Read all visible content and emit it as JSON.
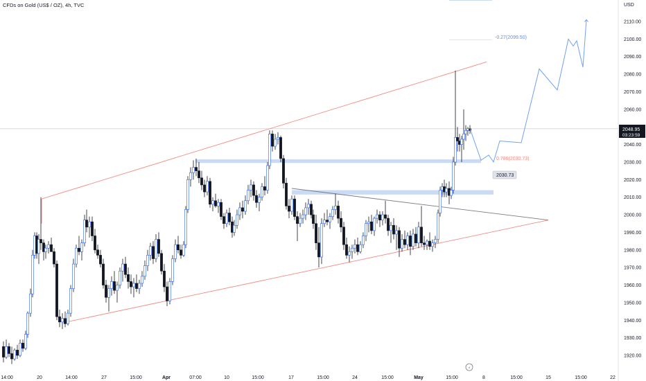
{
  "header": {
    "title": "CFDs on Gold (US$ / OZ), 4h, TVC"
  },
  "colors": {
    "up_body": "#ffffff",
    "down_body": "#131722",
    "candle_outline": "#2962ff",
    "wick": "#131722",
    "channel": "#f28b82",
    "triangle": "#787b86",
    "zone": "#b8ccf0",
    "projection": "#6fa1f2"
  },
  "price_badge": {
    "price": "2048.95",
    "countdown": "03:23:59"
  },
  "zone_label": "2030.73",
  "fib_labels": {
    "upper": "-0.27(2099.50)",
    "lower": "0.786(2030.73)"
  },
  "chart_data": {
    "type": "candlestick",
    "title": "CFDs on Gold (US$ / OZ), 4h, TVC",
    "y_axis": {
      "unit": "USD",
      "range": [
        1912,
        2130
      ],
      "ticks": [
        "1920.00",
        "1930.00",
        "1940.00",
        "1950.00",
        "1960.00",
        "1970.00",
        "1980.00",
        "1990.00",
        "2000.00",
        "2010.00",
        "2020.00",
        "2030.00",
        "2040.00",
        "2050.00",
        "2060.00",
        "2070.00",
        "2080.00",
        "2090.00",
        "2100.00",
        "2110.00"
      ]
    },
    "x_axis": {
      "range": [
        0,
        932
      ],
      "ticks": [
        {
          "label": "14:00",
          "x": 10
        },
        {
          "label": "20",
          "x": 57
        },
        {
          "label": "14:00",
          "x": 103
        },
        {
          "label": "27",
          "x": 150
        },
        {
          "label": "15:00",
          "x": 196
        },
        {
          "label": "Apr",
          "x": 240
        },
        {
          "label": "07:00",
          "x": 282
        },
        {
          "label": "10",
          "x": 327
        },
        {
          "label": "15:00",
          "x": 372
        },
        {
          "label": "17",
          "x": 420
        },
        {
          "label": "15:00",
          "x": 466
        },
        {
          "label": "24",
          "x": 512
        },
        {
          "label": "15:00",
          "x": 559
        },
        {
          "label": "May",
          "x": 604
        },
        {
          "label": "15:00",
          "x": 652
        },
        {
          "label": "8",
          "x": 698
        },
        {
          "label": "15:00",
          "x": 745
        },
        {
          "label": "15",
          "x": 791
        },
        {
          "label": "15:00",
          "x": 838
        },
        {
          "label": "22",
          "x": 884
        }
      ]
    },
    "candles": [
      [
        5,
        1925,
        1928,
        1916,
        1919
      ],
      [
        9,
        1919,
        1929,
        1918,
        1925
      ],
      [
        13,
        1925,
        1927,
        1919,
        1921
      ],
      [
        17,
        1921,
        1925,
        1915,
        1918
      ],
      [
        21,
        1918,
        1924,
        1917,
        1923
      ],
      [
        25,
        1923,
        1926,
        1918,
        1920
      ],
      [
        29,
        1920,
        1929,
        1919,
        1927
      ],
      [
        33,
        1927,
        1929,
        1922,
        1924
      ],
      [
        37,
        1924,
        1934,
        1923,
        1932
      ],
      [
        40,
        1932,
        1945,
        1930,
        1944
      ],
      [
        44,
        1944,
        1958,
        1942,
        1955
      ],
      [
        47,
        1955,
        1980,
        1953,
        1977
      ],
      [
        50,
        1977,
        1990,
        1975,
        1988
      ],
      [
        53,
        1988,
        1990,
        1975,
        1978
      ],
      [
        56,
        1978,
        1989,
        1972,
        1986
      ],
      [
        59,
        1986,
        2010,
        1980,
        1984
      ],
      [
        63,
        1984,
        1986,
        1974,
        1979
      ],
      [
        66,
        1979,
        1983,
        1975,
        1981
      ],
      [
        70,
        1981,
        1985,
        1978,
        1983
      ],
      [
        74,
        1983,
        1987,
        1980,
        1979
      ],
      [
        78,
        1979,
        1981,
        1970,
        1972
      ],
      [
        82,
        1972,
        1974,
        1940,
        1942
      ],
      [
        86,
        1942,
        1946,
        1936,
        1939
      ],
      [
        90,
        1939,
        1944,
        1935,
        1941
      ],
      [
        94,
        1941,
        1945,
        1936,
        1938
      ],
      [
        98,
        1938,
        1946,
        1937,
        1944
      ],
      [
        102,
        1944,
        1960,
        1942,
        1958
      ],
      [
        106,
        1958,
        1975,
        1956,
        1972
      ],
      [
        110,
        1972,
        1983,
        1970,
        1981
      ],
      [
        114,
        1981,
        1988,
        1977,
        1979
      ],
      [
        118,
        1979,
        1986,
        1974,
        1984
      ],
      [
        122,
        1984,
        2000,
        1982,
        1997
      ],
      [
        125,
        1997,
        2003,
        1990,
        1993
      ],
      [
        129,
        1993,
        1999,
        1987,
        1996
      ],
      [
        133,
        1996,
        1999,
        1985,
        1988
      ],
      [
        137,
        1988,
        1992,
        1978,
        1980
      ],
      [
        141,
        1980,
        1983,
        1975,
        1977
      ],
      [
        145,
        1977,
        1980,
        1970,
        1972
      ],
      [
        149,
        1972,
        1975,
        1958,
        1960
      ],
      [
        153,
        1960,
        1963,
        1950,
        1953
      ],
      [
        157,
        1953,
        1960,
        1945,
        1958
      ],
      [
        161,
        1958,
        1965,
        1954,
        1962
      ],
      [
        165,
        1962,
        1968,
        1955,
        1957
      ],
      [
        169,
        1957,
        1962,
        1950,
        1960
      ],
      [
        173,
        1960,
        1970,
        1958,
        1968
      ],
      [
        177,
        1968,
        1975,
        1962,
        1972
      ],
      [
        181,
        1972,
        1976,
        1964,
        1966
      ],
      [
        185,
        1966,
        1970,
        1958,
        1962
      ],
      [
        189,
        1962,
        1966,
        1955,
        1959
      ],
      [
        193,
        1959,
        1964,
        1953,
        1961
      ],
      [
        197,
        1961,
        1966,
        1956,
        1958
      ],
      [
        201,
        1958,
        1963,
        1955,
        1961
      ],
      [
        205,
        1961,
        1968,
        1959,
        1965
      ],
      [
        209,
        1965,
        1974,
        1963,
        1971
      ],
      [
        213,
        1971,
        1980,
        1968,
        1977
      ],
      [
        217,
        1977,
        1984,
        1974,
        1982
      ],
      [
        221,
        1982,
        1985,
        1972,
        1975
      ],
      [
        225,
        1975,
        1989,
        1973,
        1986
      ],
      [
        229,
        1986,
        1990,
        1976,
        1978
      ],
      [
        233,
        1978,
        1980,
        1966,
        1968
      ],
      [
        237,
        1968,
        1972,
        1956,
        1959
      ],
      [
        241,
        1959,
        1962,
        1948,
        1951
      ],
      [
        245,
        1951,
        1964,
        1949,
        1962
      ],
      [
        249,
        1962,
        1977,
        1960,
        1975
      ],
      [
        253,
        1975,
        1986,
        1973,
        1983
      ],
      [
        257,
        1983,
        1988,
        1978,
        1980
      ],
      [
        261,
        1980,
        1983,
        1975,
        1977
      ],
      [
        265,
        1977,
        1985,
        1976,
        1983
      ],
      [
        268,
        1983,
        2005,
        1981,
        2003
      ],
      [
        271,
        2003,
        2022,
        2001,
        2020
      ],
      [
        275,
        2020,
        2027,
        2016,
        2024
      ],
      [
        279,
        2024,
        2031,
        2020,
        2027
      ],
      [
        283,
        2027,
        2032,
        2022,
        2025
      ],
      [
        287,
        2025,
        2030,
        2018,
        2021
      ],
      [
        291,
        2021,
        2025,
        2014,
        2017
      ],
      [
        295,
        2017,
        2020,
        2010,
        2013
      ],
      [
        299,
        2013,
        2022,
        2011,
        2019
      ],
      [
        303,
        2019,
        2021,
        2004,
        2006
      ],
      [
        307,
        2006,
        2010,
        2002,
        2008
      ],
      [
        311,
        2008,
        2012,
        2004,
        2005
      ],
      [
        315,
        2005,
        2009,
        2001,
        2007
      ],
      [
        319,
        2007,
        2009,
        1997,
        1999
      ],
      [
        323,
        1999,
        2001,
        1992,
        1995
      ],
      [
        327,
        1995,
        2003,
        1993,
        2001
      ],
      [
        331,
        2001,
        2004,
        1994,
        1996
      ],
      [
        335,
        1996,
        1999,
        1987,
        1990
      ],
      [
        338,
        1990,
        1997,
        1988,
        1994
      ],
      [
        342,
        1994,
        2003,
        1992,
        2000
      ],
      [
        346,
        2000,
        2007,
        1997,
        2004
      ],
      [
        350,
        2004,
        2008,
        1998,
        2002
      ],
      [
        354,
        2002,
        2011,
        2000,
        2008
      ],
      [
        358,
        2008,
        2017,
        2006,
        2014
      ],
      [
        362,
        2014,
        2020,
        2010,
        2017
      ],
      [
        366,
        2017,
        2019,
        2008,
        2011
      ],
      [
        370,
        2011,
        2014,
        2004,
        2007
      ],
      [
        374,
        2007,
        2012,
        2002,
        2010
      ],
      [
        378,
        2010,
        2018,
        2008,
        2016
      ],
      [
        382,
        2016,
        2022,
        2011,
        2014
      ],
      [
        386,
        2014,
        2030,
        2012,
        2028
      ],
      [
        389,
        2028,
        2048,
        2026,
        2046
      ],
      [
        393,
        2046,
        2048,
        2036,
        2039
      ],
      [
        397,
        2039,
        2046,
        2037,
        2043
      ],
      [
        401,
        2043,
        2047,
        2040,
        2044
      ],
      [
        405,
        2044,
        2045,
        2030,
        2032
      ],
      [
        409,
        2032,
        2034,
        2015,
        2018
      ],
      [
        413,
        2018,
        2021,
        2003,
        2005
      ],
      [
        417,
        2005,
        2009,
        1998,
        2002
      ],
      [
        421,
        2002,
        2011,
        2000,
        2009
      ],
      [
        425,
        2009,
        2011,
        1997,
        1999
      ],
      [
        429,
        1999,
        2002,
        1985,
        1995
      ],
      [
        433,
        1995,
        2001,
        1993,
        1998
      ],
      [
        437,
        1998,
        2003,
        1995,
        2000
      ],
      [
        441,
        2000,
        2007,
        1997,
        2004
      ],
      [
        445,
        2004,
        2009,
        2000,
        2006
      ],
      [
        449,
        2006,
        2008,
        1998,
        2000
      ],
      [
        452,
        2000,
        2003,
        1992,
        1995
      ],
      [
        456,
        1995,
        2000,
        1980,
        1984
      ],
      [
        460,
        1984,
        1993,
        1970,
        1976
      ],
      [
        464,
        1976,
        1998,
        1972,
        1995
      ],
      [
        468,
        1995,
        2001,
        1993,
        1997
      ],
      [
        472,
        1997,
        2003,
        1994,
        1996
      ],
      [
        476,
        1996,
        2001,
        1992,
        1999
      ],
      [
        480,
        1999,
        2005,
        1997,
        2003
      ],
      [
        484,
        2003,
        2012,
        2000,
        2005
      ],
      [
        488,
        2005,
        2008,
        1995,
        1998
      ],
      [
        492,
        1998,
        2002,
        1990,
        1993
      ],
      [
        496,
        1993,
        1996,
        1980,
        1983
      ],
      [
        500,
        1983,
        1987,
        1975,
        1977
      ],
      [
        504,
        1977,
        1982,
        1973,
        1979
      ],
      [
        508,
        1979,
        1983,
        1975,
        1981
      ],
      [
        512,
        1981,
        1986,
        1978,
        1983
      ],
      [
        516,
        1983,
        1987,
        1977,
        1979
      ],
      [
        520,
        1979,
        1985,
        1978,
        1983
      ],
      [
        524,
        1983,
        1990,
        1981,
        1988
      ],
      [
        528,
        1988,
        1997,
        1985,
        1995
      ],
      [
        532,
        1995,
        1999,
        1990,
        1996
      ],
      [
        536,
        1996,
        2000,
        1989,
        1991
      ],
      [
        540,
        1991,
        1999,
        1988,
        1998
      ],
      [
        544,
        1998,
        2003,
        1995,
        2000
      ],
      [
        548,
        2000,
        2002,
        1993,
        1997
      ],
      [
        552,
        1997,
        2002,
        1994,
        2000
      ],
      [
        556,
        2000,
        2008,
        1995,
        1998
      ],
      [
        560,
        1998,
        2000,
        1988,
        1991
      ],
      [
        564,
        1991,
        1996,
        1984,
        1994
      ],
      [
        568,
        1994,
        1998,
        1986,
        1989
      ],
      [
        572,
        1989,
        1994,
        1980,
        1991
      ],
      [
        576,
        1991,
        1993,
        1976,
        1981
      ],
      [
        580,
        1981,
        1989,
        1979,
        1986
      ],
      [
        584,
        1986,
        1991,
        1981,
        1983
      ],
      [
        588,
        1983,
        1990,
        1980,
        1988
      ],
      [
        592,
        1988,
        1991,
        1977,
        1982
      ],
      [
        596,
        1982,
        1992,
        1980,
        1989
      ],
      [
        600,
        1989,
        1993,
        1982,
        1984
      ],
      [
        604,
        1984,
        1996,
        1981,
        1993
      ],
      [
        608,
        1993,
        2005,
        1982,
        1984
      ],
      [
        612,
        1984,
        1988,
        1980,
        1983
      ],
      [
        616,
        1983,
        1986,
        1980,
        1985
      ],
      [
        620,
        1985,
        1990,
        1980,
        1982
      ],
      [
        624,
        1982,
        1986,
        1979,
        1984
      ],
      [
        628,
        1984,
        1988,
        1981,
        1986
      ],
      [
        632,
        1986,
        2003,
        1984,
        2001
      ],
      [
        635,
        2001,
        2016,
        1999,
        2014
      ],
      [
        638,
        2014,
        2018,
        2010,
        2016
      ],
      [
        641,
        2016,
        2020,
        2010,
        2013
      ],
      [
        644,
        2013,
        2018,
        2010,
        2015
      ],
      [
        648,
        2015,
        2019,
        2006,
        2011
      ],
      [
        651,
        2011,
        2016,
        2009,
        2014
      ],
      [
        654,
        2014,
        2033,
        2012,
        2030
      ],
      [
        657,
        2030,
        2082,
        2028,
        2044
      ],
      [
        660,
        2044,
        2050,
        2036,
        2042
      ],
      [
        663,
        2042,
        2046,
        2036,
        2040
      ],
      [
        666,
        2040,
        2045,
        2030,
        2043
      ],
      [
        669,
        2043,
        2060,
        2037,
        2046
      ],
      [
        672,
        2046,
        2051,
        2042,
        2048
      ],
      [
        675,
        2048,
        2050,
        2045,
        2049
      ],
      [
        678,
        2049,
        2051,
        2046,
        2048
      ]
    ],
    "channel": {
      "upper": [
        [
          1,
          2009
        ],
        [
          702,
          2087
        ]
      ],
      "lower": [
        [
          1,
          1938
        ],
        [
          791,
          1997
        ]
      ]
    },
    "triangle": {
      "upper": [
        [
          1,
          2015
        ],
        [
          791,
          1997
        ]
      ],
      "lower": [
        [
          1,
          1984
        ],
        [
          791,
          1997
        ]
      ]
    },
    "zones": [
      {
        "x0": 282,
        "x1": 694,
        "y0": 2029.5,
        "y1": 2031.5
      },
      {
        "x0": 421,
        "x1": 712,
        "y0": 2011.5,
        "y1": 2014
      }
    ],
    "projection": [
      [
        678,
        2049
      ],
      [
        694,
        2031
      ],
      [
        705,
        2034
      ],
      [
        712,
        2030
      ],
      [
        721,
        2042
      ],
      [
        752,
        2041
      ],
      [
        778,
        2083
      ],
      [
        804,
        2071
      ],
      [
        820,
        2100
      ],
      [
        827,
        2096
      ],
      [
        832,
        2099
      ],
      [
        841,
        2084
      ],
      [
        846,
        2111
      ]
    ],
    "fib_levels": [
      2099.5,
      2030.73
    ],
    "last_price": 2048.95
  }
}
